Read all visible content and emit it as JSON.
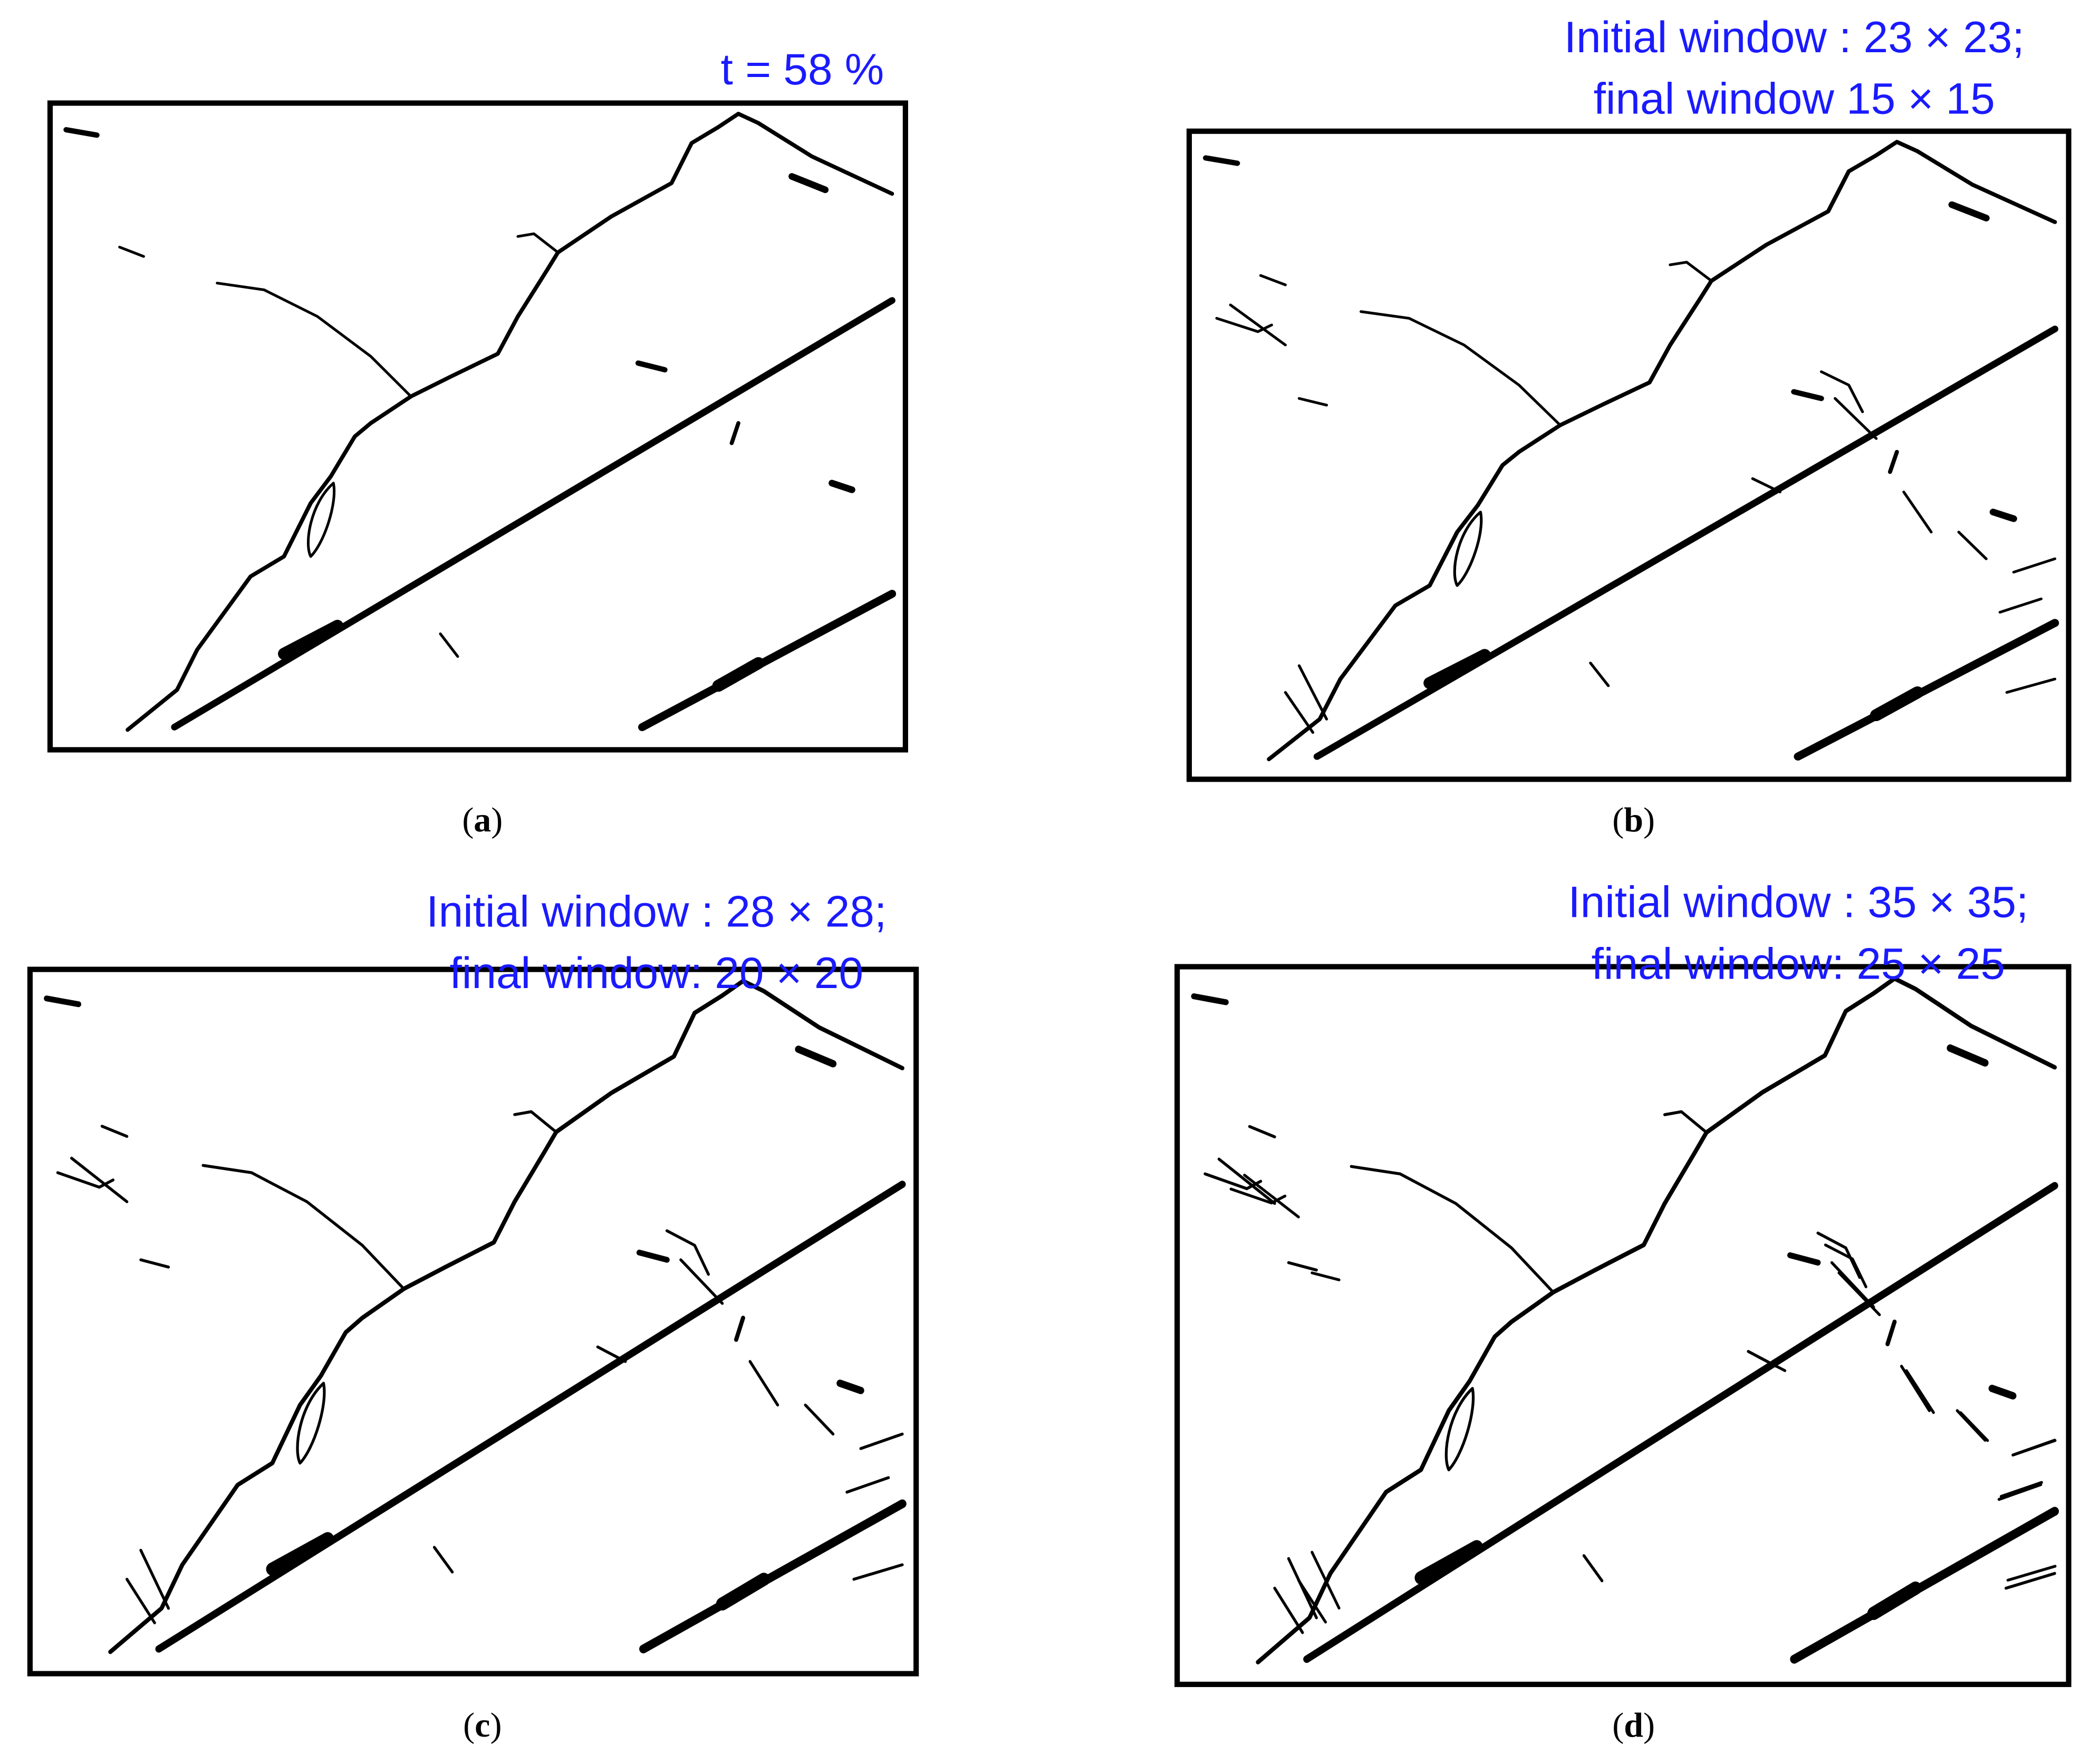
{
  "panels": [
    {
      "caption": "a",
      "title_lines": [
        "t = 58 %"
      ]
    },
    {
      "caption": "b",
      "title_lines": [
        "Initial window : 23 × 23;",
        "final window 15 × 15"
      ]
    },
    {
      "caption": "c",
      "title_lines": [
        "Initial window : 28 × 28;",
        "final window: 20 × 20"
      ]
    },
    {
      "caption": "d",
      "title_lines": [
        "Initial window : 35 × 35;",
        "final window: 25 × 25"
      ]
    }
  ]
}
